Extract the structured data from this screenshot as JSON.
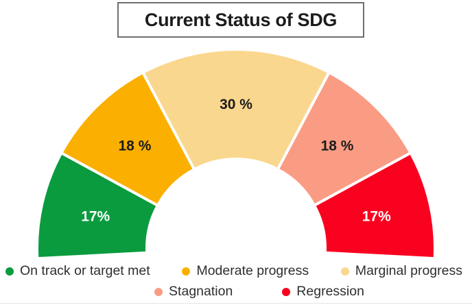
{
  "title": {
    "text": "Current Status of SDG"
  },
  "chart_data": {
    "type": "pie",
    "subtype": "half-donut-gauge",
    "title": "Current Status of SDG",
    "unit": "%",
    "segments": [
      {
        "label": "On track or target met",
        "value": 17,
        "display": "17%",
        "color": "#0a9b3e",
        "label_color": "#ffffff"
      },
      {
        "label": "Moderate progress",
        "value": 18,
        "display": "18 %",
        "color": "#fbaf00",
        "label_color": "#1b1b1b"
      },
      {
        "label": "Marginal progress",
        "value": 30,
        "display": "30 %",
        "color": "#fad78e",
        "label_color": "#1b1b1b"
      },
      {
        "label": "Stagnation",
        "value": 18,
        "display": "18 %",
        "color": "#fa9c84",
        "label_color": "#1b1b1b"
      },
      {
        "label": "Regression",
        "value": 17,
        "display": "17%",
        "color": "#f9021f",
        "label_color": "#ffffff"
      }
    ],
    "total": 100,
    "legend_position": "bottom",
    "legend_rows": [
      [
        0,
        1,
        2
      ],
      [
        3,
        4
      ]
    ],
    "geometry_hint": {
      "start_angle_deg": 183,
      "end_angle_deg": -3,
      "gap_color": "#ffffff"
    }
  }
}
